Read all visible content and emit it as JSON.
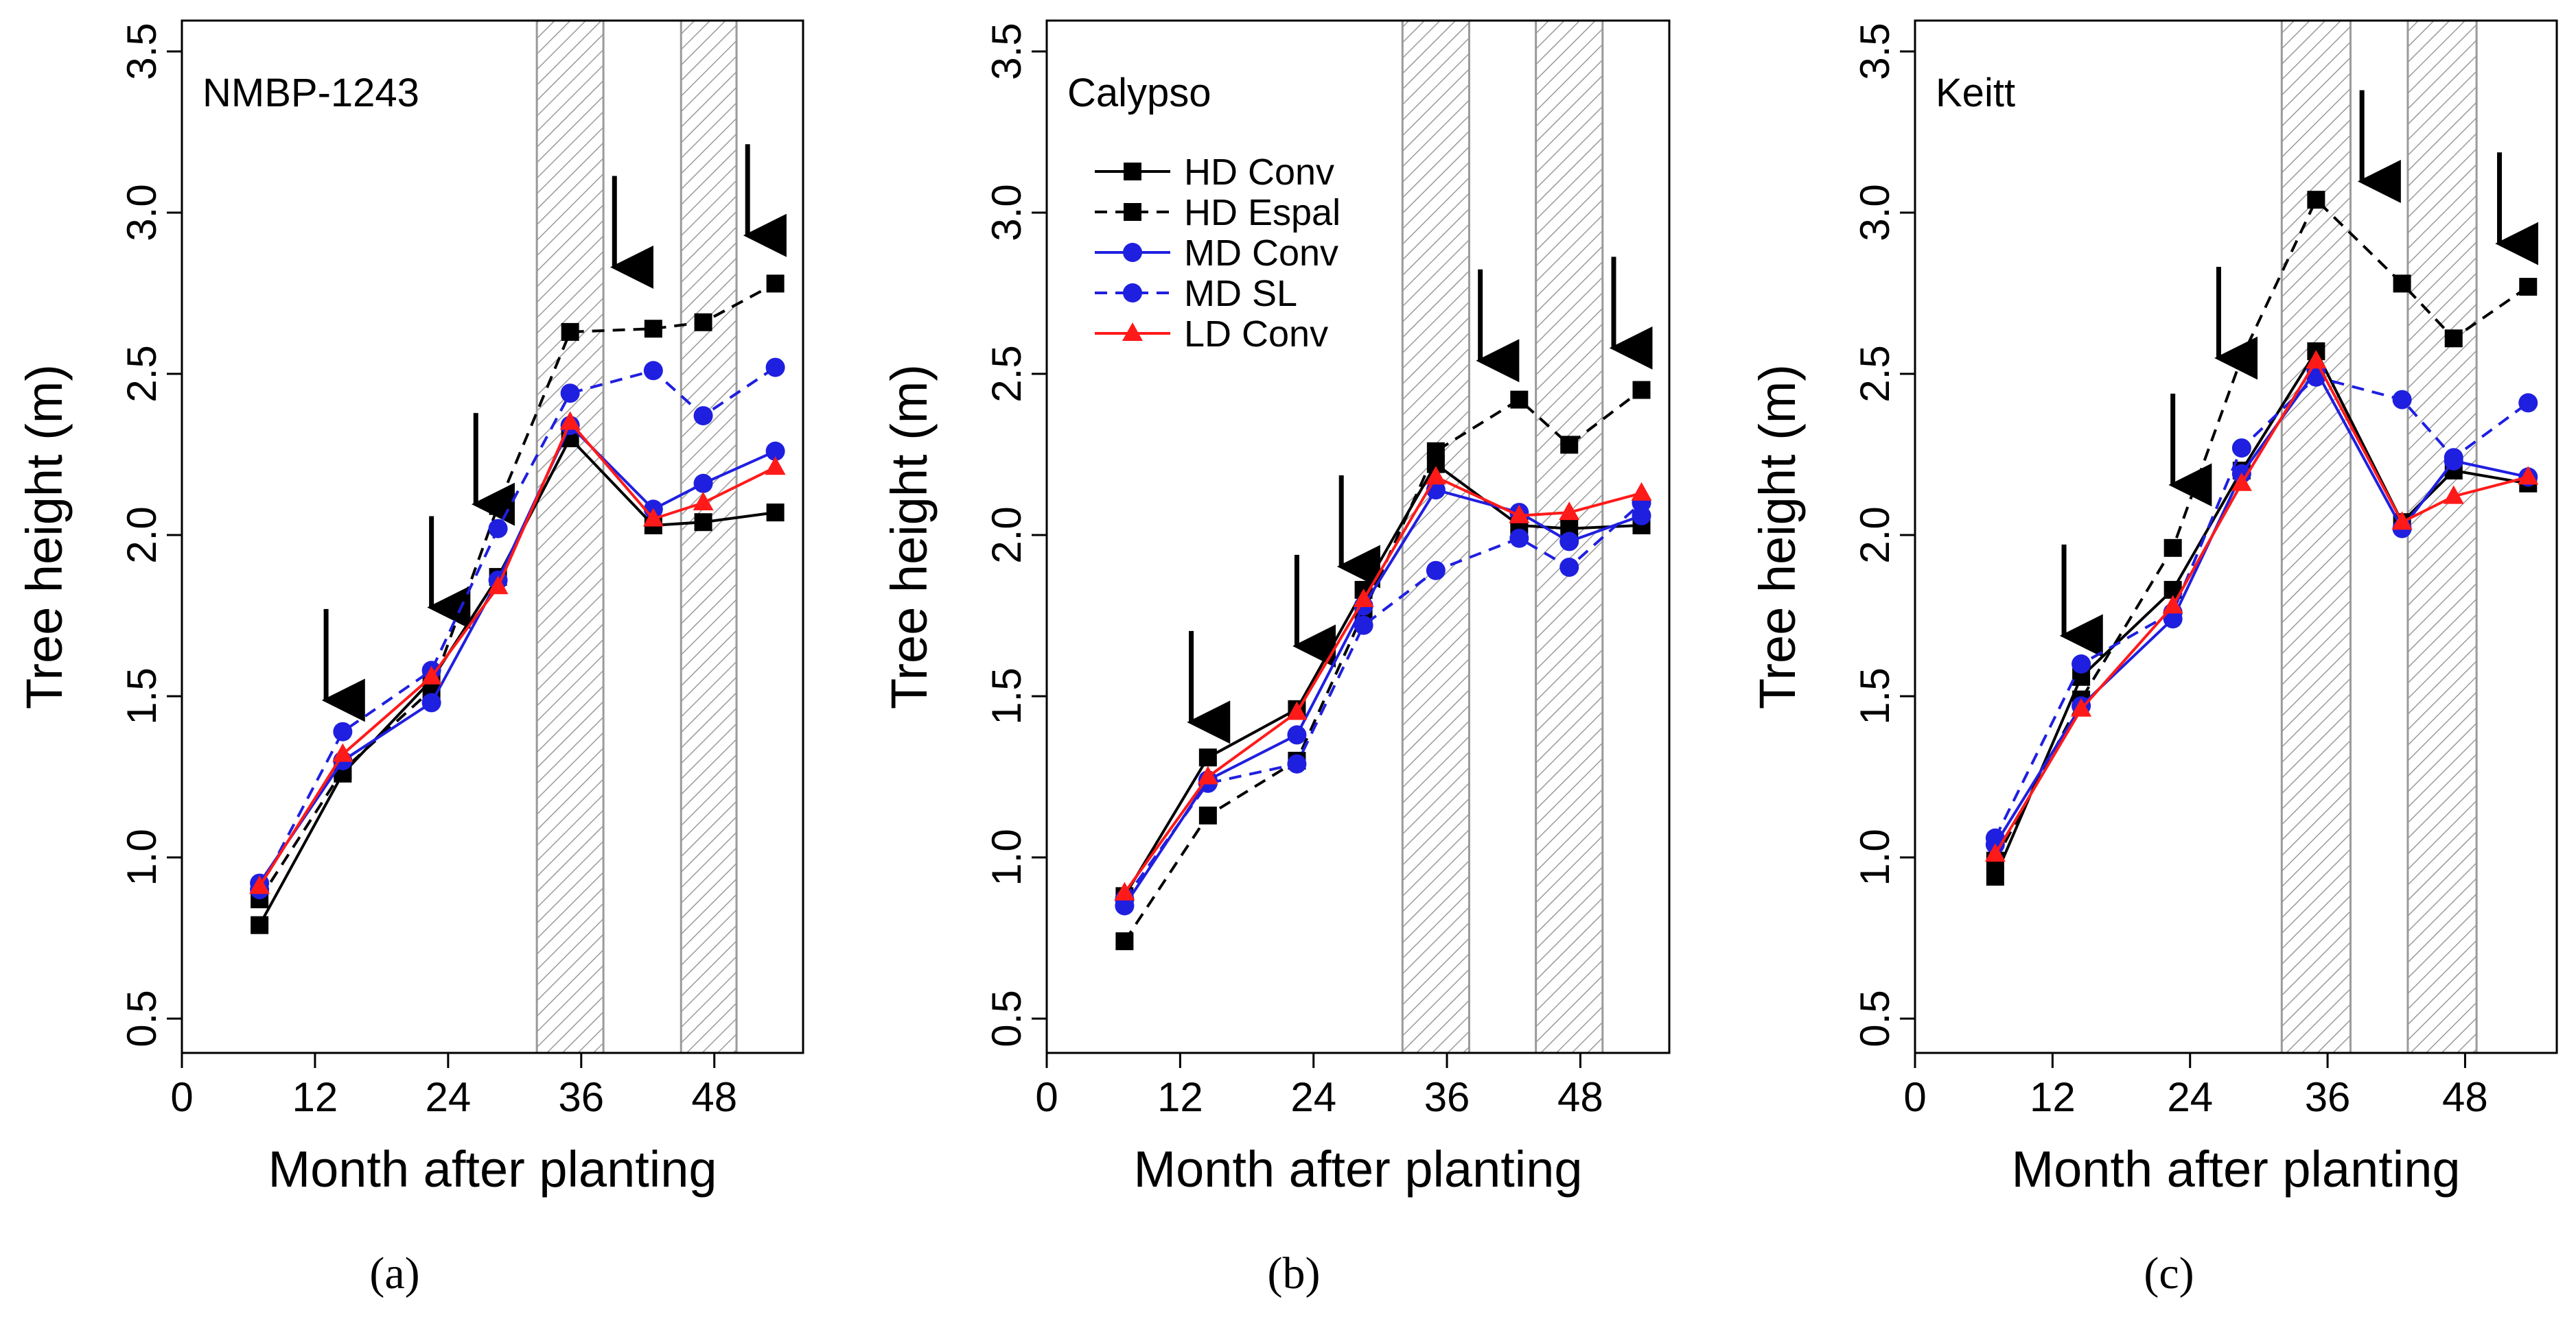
{
  "chart_data": [
    {
      "type": "line",
      "panel_label": "NMBP-1243",
      "caption": "(a)",
      "xlabel": "Month after planting",
      "ylabel": "Tree height (m)",
      "xlim": [
        0,
        56
      ],
      "ylim": [
        0.5,
        3.5
      ],
      "xticks": [
        "0",
        "12",
        "24",
        "36",
        "48"
      ],
      "yticks": [
        "0.5",
        "1.0",
        "1.5",
        "2.0",
        "2.5",
        "3.0",
        "3.5"
      ],
      "x": [
        7,
        14.5,
        22.5,
        28.5,
        35,
        42.5,
        47,
        53.5
      ],
      "shaded_periods": [
        [
          32,
          38
        ],
        [
          45,
          50
        ]
      ],
      "arrows_at_month": [
        13,
        22.5,
        26.5,
        39,
        51
      ],
      "series": [
        {
          "name": "HD Conv",
          "values": [
            0.79,
            1.26,
            1.55,
            1.87,
            2.3,
            2.03,
            2.04,
            2.07
          ]
        },
        {
          "name": "HD Espal",
          "values": [
            0.87,
            1.27,
            1.52,
            2.09,
            2.63,
            2.64,
            2.66,
            2.78
          ]
        },
        {
          "name": "MD Conv",
          "values": [
            0.92,
            1.3,
            1.48,
            1.86,
            2.34,
            2.08,
            2.16,
            2.26
          ]
        },
        {
          "name": "MD SL",
          "values": [
            0.9,
            1.39,
            1.58,
            2.02,
            2.44,
            2.51,
            2.37,
            2.52
          ]
        },
        {
          "name": "LD Conv",
          "values": [
            0.91,
            1.32,
            1.56,
            1.84,
            2.35,
            2.05,
            2.1,
            2.21
          ]
        }
      ]
    },
    {
      "type": "line",
      "panel_label": "Calypso",
      "caption": "(b)",
      "xlabel": "Month after planting",
      "ylabel": "Tree height (m)",
      "xlim": [
        0,
        56
      ],
      "ylim": [
        0.5,
        3.5
      ],
      "xticks": [
        "0",
        "12",
        "24",
        "36",
        "48"
      ],
      "yticks": [
        "0.5",
        "1.0",
        "1.5",
        "2.0",
        "2.5",
        "3.0",
        "3.5"
      ],
      "x": [
        7,
        14.5,
        22.5,
        28.5,
        35,
        42.5,
        47,
        53.5
      ],
      "shaded_periods": [
        [
          32,
          38
        ],
        [
          44,
          50
        ]
      ],
      "arrows_at_month": [
        13,
        22.5,
        26.5,
        39,
        51
      ],
      "series": [
        {
          "name": "HD Conv",
          "values": [
            0.88,
            1.31,
            1.46,
            1.83,
            2.22,
            2.03,
            2.02,
            2.03
          ]
        },
        {
          "name": "HD Espal",
          "values": [
            0.74,
            1.13,
            1.3,
            1.76,
            2.26,
            2.42,
            2.28,
            2.45
          ]
        },
        {
          "name": "MD Conv",
          "values": [
            0.85,
            1.24,
            1.38,
            1.78,
            2.14,
            2.07,
            1.98,
            2.06
          ]
        },
        {
          "name": "MD SL",
          "values": [
            0.87,
            1.23,
            1.29,
            1.72,
            1.89,
            1.99,
            1.9,
            2.1
          ]
        },
        {
          "name": "LD Conv",
          "values": [
            0.89,
            1.25,
            1.45,
            1.8,
            2.18,
            2.06,
            2.07,
            2.13
          ]
        }
      ]
    },
    {
      "type": "line",
      "panel_label": "Keitt",
      "caption": "(c)",
      "xlabel": "Month after planting",
      "ylabel": "Tree height (m)",
      "xlim": [
        0,
        56
      ],
      "ylim": [
        0.5,
        3.5
      ],
      "xticks": [
        "0",
        "12",
        "24",
        "36",
        "48"
      ],
      "yticks": [
        "0.5",
        "1.0",
        "1.5",
        "2.0",
        "2.5",
        "3.0",
        "3.5"
      ],
      "x": [
        7,
        14.5,
        22.5,
        28.5,
        35,
        42.5,
        47,
        53.5
      ],
      "shaded_periods": [
        [
          32,
          38
        ],
        [
          43,
          49
        ]
      ],
      "arrows_at_month": [
        13,
        22.5,
        26.5,
        39,
        51
      ],
      "series": [
        {
          "name": "HD Conv",
          "values": [
            0.94,
            1.56,
            1.83,
            2.2,
            2.57,
            2.04,
            2.2,
            2.16
          ]
        },
        {
          "name": "HD Espal",
          "values": [
            0.99,
            1.49,
            1.96,
            2.55,
            3.04,
            2.78,
            2.61,
            2.77
          ]
        },
        {
          "name": "MD Conv",
          "values": [
            1.04,
            1.47,
            1.74,
            2.19,
            2.51,
            2.02,
            2.23,
            2.18
          ]
        },
        {
          "name": "MD SL",
          "values": [
            1.06,
            1.6,
            1.76,
            2.27,
            2.49,
            2.42,
            2.24,
            2.41
          ]
        },
        {
          "name": "LD Conv",
          "values": [
            1.01,
            1.46,
            1.78,
            2.16,
            2.54,
            2.04,
            2.12,
            2.18
          ]
        }
      ]
    }
  ],
  "series_styles": [
    {
      "name": "HD Conv",
      "color": "#000000",
      "dash": "solid",
      "marker": "square"
    },
    {
      "name": "HD Espal",
      "color": "#000000",
      "dash": "dashed",
      "marker": "square"
    },
    {
      "name": "MD Conv",
      "color": "#1f1fe0",
      "dash": "solid",
      "marker": "circle"
    },
    {
      "name": "MD SL",
      "color": "#1f1fe0",
      "dash": "dashed",
      "marker": "circle"
    },
    {
      "name": "LD Conv",
      "color": "#ff1a1a",
      "dash": "solid",
      "marker": "triangle"
    }
  ],
  "legend": {
    "panel": 1,
    "placement": "top-left",
    "entries": [
      "HD Conv",
      "HD Espal",
      "MD Conv",
      "MD SL",
      "LD Conv"
    ]
  }
}
